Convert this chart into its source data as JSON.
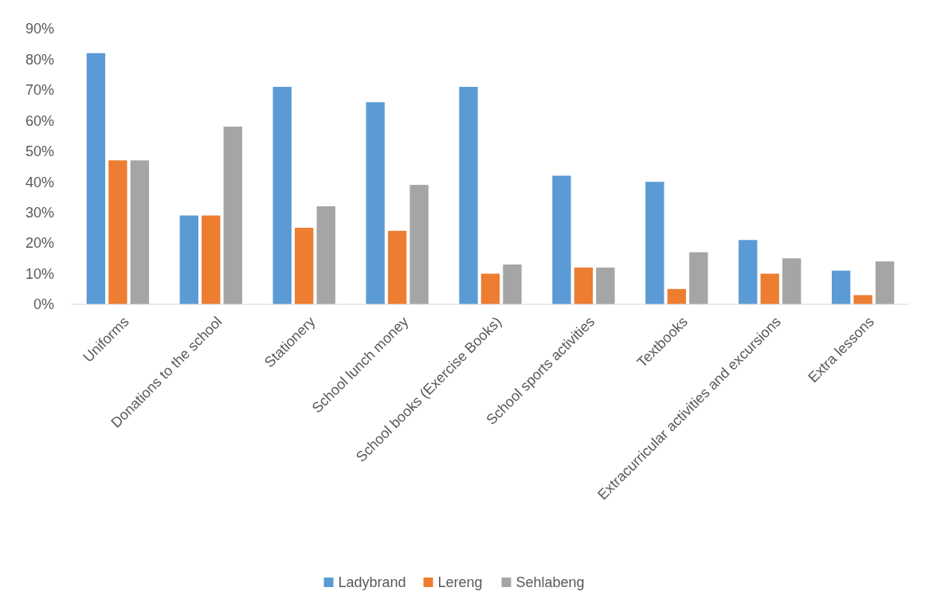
{
  "chart_data": {
    "type": "bar",
    "categories": [
      "Uniforms",
      "Donations to the school",
      "Stationery",
      "School lunch money",
      "School books (Exercise Books)",
      "School sports activities",
      "Textbooks",
      "Extracurricular activities and excursions",
      "Extra lessons"
    ],
    "series": [
      {
        "name": "Ladybrand",
        "color": "#5b9bd5",
        "values": [
          0.82,
          0.29,
          0.71,
          0.66,
          0.71,
          0.42,
          0.4,
          0.21,
          0.11
        ]
      },
      {
        "name": "Lereng",
        "color": "#ed7d31",
        "values": [
          0.47,
          0.29,
          0.25,
          0.24,
          0.1,
          0.12,
          0.05,
          0.1,
          0.03
        ]
      },
      {
        "name": "Sehlabeng",
        "color": "#a5a5a5",
        "values": [
          0.47,
          0.58,
          0.32,
          0.39,
          0.13,
          0.12,
          0.17,
          0.15,
          0.14
        ]
      }
    ],
    "ylim": [
      0,
      0.9
    ],
    "yticks": [
      {
        "value": 0,
        "label": "0%"
      },
      {
        "value": 0.1,
        "label": "10%"
      },
      {
        "value": 0.2,
        "label": "20%"
      },
      {
        "value": 0.3,
        "label": "30%"
      },
      {
        "value": 0.4,
        "label": "40%"
      },
      {
        "value": 0.5,
        "label": "50%"
      },
      {
        "value": 0.6,
        "label": "60%"
      },
      {
        "value": 0.7,
        "label": "70%"
      },
      {
        "value": 0.8,
        "label": "80%"
      },
      {
        "value": 0.9,
        "label": "90%"
      }
    ],
    "grid": false,
    "legend": "bottom"
  }
}
